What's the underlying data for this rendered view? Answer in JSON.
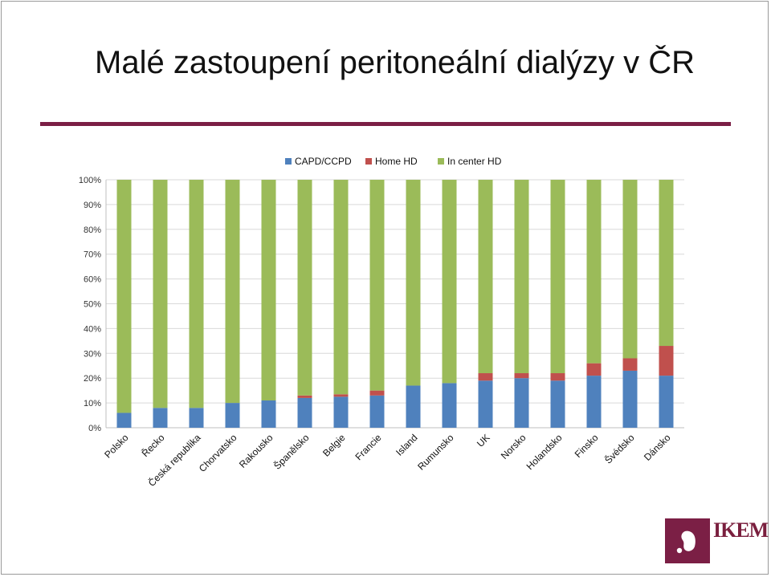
{
  "slide": {
    "title": "Malé zastoupení peritoneální dialýzy v ČR",
    "accent_color": "#7b1f45",
    "logo_text_line1": "IKEM",
    "logo_text_line2": ""
  },
  "chart_data": {
    "type": "bar",
    "stacked": true,
    "title": "",
    "xlabel": "",
    "ylabel": "",
    "ylim": [
      0,
      100
    ],
    "y_ticks": [
      "0%",
      "10%",
      "20%",
      "30%",
      "40%",
      "50%",
      "60%",
      "70%",
      "80%",
      "90%",
      "100%"
    ],
    "legend_position": "top",
    "categories": [
      "Polsko",
      "Řecko",
      "Česká republika",
      "Chorvatsko",
      "Rakousko",
      "Španělsko",
      "Belgie",
      "Francie",
      "Island",
      "Rumunsko",
      "UK",
      "Norsko",
      "Holandsko",
      "Finsko",
      "Švédsko",
      "Dánsko"
    ],
    "series": [
      {
        "name": "CAPD/CCPD",
        "color": "#4f81bd",
        "values": [
          6,
          8,
          8,
          10,
          11,
          12,
          12.5,
          13,
          17,
          18,
          19,
          20,
          19,
          21,
          23,
          21
        ]
      },
      {
        "name": "Home HD",
        "color": "#c0504d",
        "values": [
          0,
          0,
          0,
          0,
          0,
          1,
          1,
          2,
          0,
          0,
          3,
          2,
          3,
          5,
          5,
          12
        ]
      },
      {
        "name": "In center HD",
        "color": "#9bbb59",
        "values": [
          94,
          92,
          92,
          90,
          89,
          87,
          86.5,
          85,
          83,
          82,
          78,
          78,
          78,
          74,
          72,
          67
        ]
      }
    ]
  }
}
